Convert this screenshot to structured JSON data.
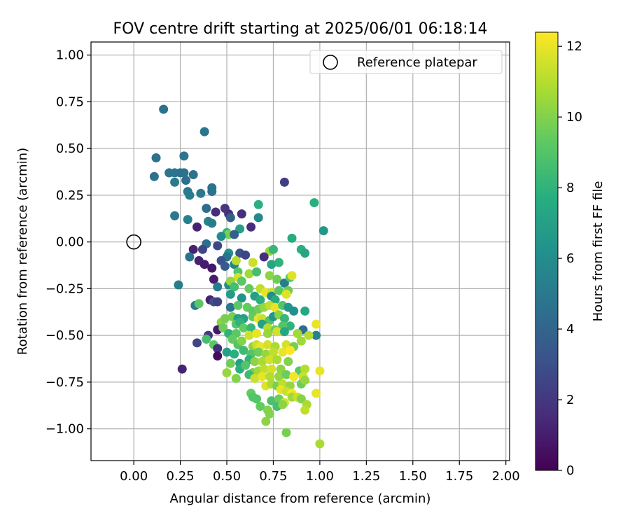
{
  "chart_data": {
    "type": "scatter",
    "title": "FOV centre drift starting at 2025/06/01 06:18:14",
    "xlabel": "Angular distance from reference (arcmin)",
    "ylabel": "Rotation from reference (arcmin)",
    "xlim": [
      -0.23,
      2.02
    ],
    "ylim": [
      -1.17,
      1.07
    ],
    "x_ticks": [
      0.0,
      0.25,
      0.5,
      0.75,
      1.0,
      1.25,
      1.5,
      1.75,
      2.0
    ],
    "x_tick_labels": [
      "0.00",
      "0.25",
      "0.50",
      "0.75",
      "1.00",
      "1.25",
      "1.50",
      "1.75",
      "2.00"
    ],
    "y_ticks": [
      1.0,
      0.75,
      0.5,
      0.25,
      0.0,
      -0.25,
      -0.5,
      -0.75,
      -1.0
    ],
    "y_tick_labels": [
      "1.00",
      "0.75",
      "0.50",
      "0.25",
      "0.00",
      "−0.25",
      "−0.50",
      "−0.75",
      "−1.00"
    ],
    "grid": true,
    "legend": {
      "position": "top-right",
      "entries": [
        {
          "label": "Reference platepar",
          "marker": "open-circle"
        }
      ]
    },
    "reference_point": {
      "x": 0.0,
      "y": 0.0
    },
    "colorbar": {
      "label": "Hours from first FF file",
      "colormap": "viridis",
      "range": [
        0,
        12.4
      ],
      "ticks": [
        0,
        2,
        4,
        6,
        8,
        10,
        12
      ],
      "tick_labels": [
        "0",
        "2",
        "4",
        "6",
        "8",
        "10",
        "12"
      ]
    },
    "series": [
      {
        "encoding": "[x, y, hours]",
        "points": [
          [
            0.16,
            0.71,
            4.6
          ],
          [
            0.38,
            0.59,
            4.8
          ],
          [
            0.12,
            0.45,
            4.6
          ],
          [
            0.27,
            0.46,
            4.8
          ],
          [
            0.11,
            0.35,
            4.6
          ],
          [
            0.19,
            0.37,
            4.8
          ],
          [
            0.22,
            0.37,
            4.8
          ],
          [
            0.25,
            0.37,
            4.6
          ],
          [
            0.27,
            0.37,
            4.6
          ],
          [
            0.32,
            0.36,
            4.6
          ],
          [
            0.22,
            0.32,
            5.0
          ],
          [
            0.28,
            0.33,
            4.6
          ],
          [
            0.81,
            0.32,
            2.3
          ],
          [
            0.42,
            0.29,
            4.6
          ],
          [
            0.29,
            0.27,
            5.0
          ],
          [
            0.42,
            0.27,
            4.6
          ],
          [
            0.36,
            0.26,
            5.0
          ],
          [
            0.3,
            0.25,
            5.2
          ],
          [
            0.97,
            0.21,
            7.8
          ],
          [
            0.67,
            0.2,
            7.8
          ],
          [
            0.39,
            0.18,
            4.4
          ],
          [
            0.49,
            0.18,
            2.0
          ],
          [
            0.44,
            0.16,
            1.6
          ],
          [
            0.51,
            0.15,
            1.6
          ],
          [
            0.58,
            0.15,
            1.6
          ],
          [
            0.52,
            0.13,
            3.8
          ],
          [
            0.22,
            0.14,
            5.0
          ],
          [
            0.29,
            0.12,
            5.4
          ],
          [
            0.4,
            0.11,
            5.6
          ],
          [
            0.42,
            0.1,
            5.2
          ],
          [
            0.67,
            0.13,
            5.8
          ],
          [
            0.63,
            0.08,
            1.6
          ],
          [
            0.34,
            0.08,
            1.2
          ],
          [
            0.57,
            0.07,
            7.0
          ],
          [
            0.5,
            0.05,
            8.2
          ],
          [
            1.02,
            0.06,
            6.6
          ],
          [
            0.51,
            0.04,
            9.8
          ],
          [
            0.47,
            0.03,
            6.0
          ],
          [
            0.54,
            0.04,
            3.8
          ],
          [
            0.85,
            0.02,
            7.6
          ],
          [
            0.39,
            -0.01,
            4.4
          ],
          [
            0.45,
            -0.02,
            2.6
          ],
          [
            0.37,
            -0.04,
            2.6
          ],
          [
            0.32,
            -0.04,
            1.2
          ],
          [
            0.51,
            -0.06,
            6.2
          ],
          [
            0.5,
            -0.08,
            4.6
          ],
          [
            0.57,
            -0.06,
            3.0
          ],
          [
            0.6,
            -0.07,
            2.6
          ],
          [
            0.73,
            -0.05,
            10.4
          ],
          [
            0.75,
            -0.04,
            8.2
          ],
          [
            0.9,
            -0.04,
            7.8
          ],
          [
            0.3,
            -0.08,
            4.6
          ],
          [
            0.35,
            -0.1,
            1.2
          ],
          [
            0.38,
            -0.12,
            1.0
          ],
          [
            0.42,
            -0.14,
            0.8
          ],
          [
            0.47,
            -0.1,
            3.2
          ],
          [
            0.49,
            -0.13,
            3.6
          ],
          [
            0.54,
            -0.12,
            5.4
          ],
          [
            0.55,
            -0.1,
            11.0
          ],
          [
            0.64,
            -0.11,
            11.4
          ],
          [
            0.7,
            -0.08,
            1.6
          ],
          [
            0.74,
            -0.12,
            7.2
          ],
          [
            0.78,
            -0.11,
            8.0
          ],
          [
            0.92,
            -0.06,
            7.2
          ],
          [
            0.56,
            -0.16,
            9.0
          ],
          [
            0.62,
            -0.17,
            10.6
          ],
          [
            0.66,
            -0.16,
            8.6
          ],
          [
            0.43,
            -0.2,
            1.0
          ],
          [
            0.56,
            -0.19,
            11.6
          ],
          [
            0.58,
            -0.21,
            9.2
          ],
          [
            0.73,
            -0.18,
            10.2
          ],
          [
            0.77,
            -0.2,
            9.6
          ],
          [
            0.81,
            -0.22,
            5.2
          ],
          [
            0.84,
            -0.19,
            9.0
          ],
          [
            0.85,
            -0.18,
            11.8
          ],
          [
            0.24,
            -0.23,
            5.2
          ],
          [
            0.45,
            -0.24,
            5.2
          ],
          [
            0.51,
            -0.23,
            6.0
          ],
          [
            0.52,
            -0.21,
            10.4
          ],
          [
            0.54,
            -0.24,
            8.6
          ],
          [
            0.62,
            -0.25,
            9.4
          ],
          [
            0.68,
            -0.25,
            11.2
          ],
          [
            0.71,
            -0.27,
            12.0
          ],
          [
            0.74,
            -0.27,
            11.4
          ],
          [
            0.78,
            -0.26,
            9.2
          ],
          [
            0.83,
            -0.26,
            9.6
          ],
          [
            0.82,
            -0.28,
            11.8
          ],
          [
            0.52,
            -0.28,
            6.8
          ],
          [
            0.58,
            -0.3,
            6.4
          ],
          [
            0.65,
            -0.29,
            7.0
          ],
          [
            0.68,
            -0.31,
            7.8
          ],
          [
            0.74,
            -0.29,
            6.0
          ],
          [
            0.76,
            -0.31,
            7.6
          ],
          [
            0.33,
            -0.34,
            5.0
          ],
          [
            0.35,
            -0.33,
            9.2
          ],
          [
            0.41,
            -0.31,
            1.2
          ],
          [
            0.43,
            -0.32,
            3.0
          ],
          [
            0.45,
            -0.32,
            2.4
          ],
          [
            0.52,
            -0.35,
            4.8
          ],
          [
            0.56,
            -0.34,
            9.2
          ],
          [
            0.61,
            -0.35,
            9.4
          ],
          [
            0.64,
            -0.37,
            9.2
          ],
          [
            0.67,
            -0.36,
            9.6
          ],
          [
            0.7,
            -0.35,
            10.4
          ],
          [
            0.73,
            -0.34,
            11.2
          ],
          [
            0.76,
            -0.35,
            12.0
          ],
          [
            0.8,
            -0.34,
            9.0
          ],
          [
            0.83,
            -0.35,
            6.6
          ],
          [
            0.86,
            -0.37,
            6.2
          ],
          [
            0.92,
            -0.37,
            7.4
          ],
          [
            0.53,
            -0.4,
            9.8
          ],
          [
            0.56,
            -0.41,
            7.0
          ],
          [
            0.59,
            -0.41,
            7.0
          ],
          [
            0.64,
            -0.4,
            9.4
          ],
          [
            0.67,
            -0.41,
            12.0
          ],
          [
            0.69,
            -0.41,
            11.4
          ],
          [
            0.73,
            -0.42,
            8.8
          ],
          [
            0.75,
            -0.4,
            6.6
          ],
          [
            0.78,
            -0.39,
            10.2
          ],
          [
            0.81,
            -0.41,
            8.2
          ],
          [
            0.84,
            -0.45,
            8.0
          ],
          [
            0.98,
            -0.44,
            12.0
          ],
          [
            0.47,
            -0.43,
            10.2
          ],
          [
            0.49,
            -0.41,
            9.8
          ],
          [
            0.55,
            -0.44,
            9.0
          ],
          [
            0.57,
            -0.43,
            8.0
          ],
          [
            0.59,
            -0.46,
            9.4
          ],
          [
            0.63,
            -0.46,
            8.2
          ],
          [
            0.69,
            -0.44,
            7.0
          ],
          [
            0.72,
            -0.46,
            11.0
          ],
          [
            0.76,
            -0.47,
            9.6
          ],
          [
            0.8,
            -0.45,
            9.0
          ],
          [
            0.91,
            -0.47,
            4.4
          ],
          [
            0.4,
            -0.5,
            2.0
          ],
          [
            0.45,
            -0.47,
            0.8
          ],
          [
            0.48,
            -0.46,
            9.6
          ],
          [
            0.51,
            -0.49,
            8.0
          ],
          [
            0.55,
            -0.49,
            9.2
          ],
          [
            0.62,
            -0.5,
            11.4
          ],
          [
            0.66,
            -0.49,
            12.0
          ],
          [
            0.72,
            -0.49,
            10.4
          ],
          [
            0.77,
            -0.48,
            11.6
          ],
          [
            0.81,
            -0.48,
            7.4
          ],
          [
            0.88,
            -0.49,
            10.6
          ],
          [
            0.98,
            -0.5,
            5.4
          ],
          [
            0.34,
            -0.54,
            2.6
          ],
          [
            0.39,
            -0.52,
            8.6
          ],
          [
            0.43,
            -0.55,
            9.2
          ],
          [
            0.53,
            -0.52,
            9.4
          ],
          [
            0.56,
            -0.55,
            9.0
          ],
          [
            0.58,
            -0.53,
            10.0
          ],
          [
            0.64,
            -0.56,
            10.2
          ],
          [
            0.66,
            -0.55,
            11.4
          ],
          [
            0.68,
            -0.56,
            12.0
          ],
          [
            0.72,
            -0.55,
            11.6
          ],
          [
            0.76,
            -0.56,
            10.8
          ],
          [
            0.82,
            -0.55,
            11.6
          ],
          [
            0.86,
            -0.56,
            9.8
          ],
          [
            0.9,
            -0.53,
            10.6
          ],
          [
            0.94,
            -0.5,
            11.0
          ],
          [
            0.45,
            -0.57,
            1.6
          ],
          [
            0.5,
            -0.59,
            7.0
          ],
          [
            0.54,
            -0.6,
            7.8
          ],
          [
            0.59,
            -0.58,
            8.4
          ],
          [
            0.63,
            -0.6,
            9.0
          ],
          [
            0.67,
            -0.59,
            9.6
          ],
          [
            0.71,
            -0.6,
            10.4
          ],
          [
            0.75,
            -0.59,
            11.2
          ],
          [
            0.8,
            -0.59,
            12.0
          ],
          [
            0.84,
            -0.58,
            12.4
          ],
          [
            0.26,
            -0.68,
            1.2
          ],
          [
            0.45,
            -0.61,
            0.4
          ],
          [
            0.52,
            -0.65,
            9.6
          ],
          [
            0.57,
            -0.65,
            7.0
          ],
          [
            0.62,
            -0.63,
            8.0
          ],
          [
            0.65,
            -0.64,
            10.2
          ],
          [
            0.69,
            -0.64,
            10.8
          ],
          [
            0.73,
            -0.63,
            11.6
          ],
          [
            0.77,
            -0.63,
            10.8
          ],
          [
            0.83,
            -0.64,
            10.0
          ],
          [
            0.57,
            -0.68,
            7.8
          ],
          [
            0.6,
            -0.66,
            9.0
          ],
          [
            0.64,
            -0.7,
            9.8
          ],
          [
            0.67,
            -0.69,
            10.6
          ],
          [
            0.7,
            -0.68,
            11.2
          ],
          [
            0.74,
            -0.68,
            11.6
          ],
          [
            0.79,
            -0.68,
            10.2
          ],
          [
            0.89,
            -0.69,
            9.2
          ],
          [
            0.92,
            -0.68,
            11.0
          ],
          [
            1.0,
            -0.69,
            12.0
          ],
          [
            0.5,
            -0.7,
            10.4
          ],
          [
            0.55,
            -0.73,
            10.0
          ],
          [
            0.62,
            -0.71,
            8.4
          ],
          [
            0.65,
            -0.73,
            11.4
          ],
          [
            0.69,
            -0.72,
            12.0
          ],
          [
            0.73,
            -0.72,
            11.0
          ],
          [
            0.78,
            -0.72,
            10.4
          ],
          [
            0.82,
            -0.71,
            9.6
          ],
          [
            0.86,
            -0.72,
            12.2
          ],
          [
            0.91,
            -0.72,
            11.4
          ],
          [
            0.71,
            -0.77,
            11.8
          ],
          [
            0.74,
            -0.76,
            10.8
          ],
          [
            0.77,
            -0.77,
            9.8
          ],
          [
            0.8,
            -0.76,
            11.2
          ],
          [
            0.84,
            -0.77,
            10.4
          ],
          [
            0.9,
            -0.76,
            9.6
          ],
          [
            0.92,
            -0.74,
            10.4
          ],
          [
            0.79,
            -0.79,
            12.0
          ],
          [
            0.82,
            -0.8,
            11.4
          ],
          [
            0.85,
            -0.81,
            12.2
          ],
          [
            0.63,
            -0.81,
            9.4
          ],
          [
            0.66,
            -0.84,
            9.0
          ],
          [
            0.74,
            -0.85,
            8.8
          ],
          [
            0.78,
            -0.84,
            9.6
          ],
          [
            0.81,
            -0.86,
            11.6
          ],
          [
            0.85,
            -0.83,
            10.6
          ],
          [
            0.88,
            -0.83,
            11.4
          ],
          [
            0.9,
            -0.84,
            10.0
          ],
          [
            0.98,
            -0.81,
            12.0
          ],
          [
            0.64,
            -0.83,
            9.0
          ],
          [
            0.68,
            -0.88,
            9.4
          ],
          [
            0.72,
            -0.9,
            10.0
          ],
          [
            0.77,
            -0.88,
            8.6
          ],
          [
            0.8,
            -0.87,
            10.2
          ],
          [
            0.93,
            -0.87,
            10.8
          ],
          [
            0.92,
            -0.9,
            11.2
          ],
          [
            0.73,
            -0.92,
            10.0
          ],
          [
            0.71,
            -0.96,
            10.2
          ],
          [
            0.82,
            -1.02,
            9.8
          ],
          [
            1.0,
            -1.08,
            10.8
          ]
        ]
      }
    ]
  }
}
